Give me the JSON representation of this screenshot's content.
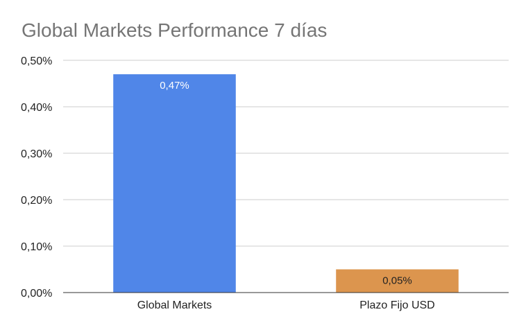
{
  "chart_data": {
    "type": "bar",
    "title": "Global Markets Performance 7 días",
    "categories": [
      "Global Markets",
      "Plazo Fijo USD"
    ],
    "values": [
      0.47,
      0.05
    ],
    "value_labels": [
      "0,47%",
      "0,05%"
    ],
    "bar_colors": [
      "#5086e8",
      "#dc954e"
    ],
    "data_label_colors": [
      "#ffffff",
      "#222222"
    ],
    "ylim": [
      0,
      0.5
    ],
    "yticks": [
      0,
      0.1,
      0.2,
      0.3,
      0.4,
      0.5
    ],
    "ytick_labels": [
      "0,00%",
      "0,10%",
      "0,20%",
      "0,30%",
      "0,40%",
      "0,50%"
    ],
    "grid": true,
    "legend": "none",
    "xlabel": "",
    "ylabel": ""
  }
}
